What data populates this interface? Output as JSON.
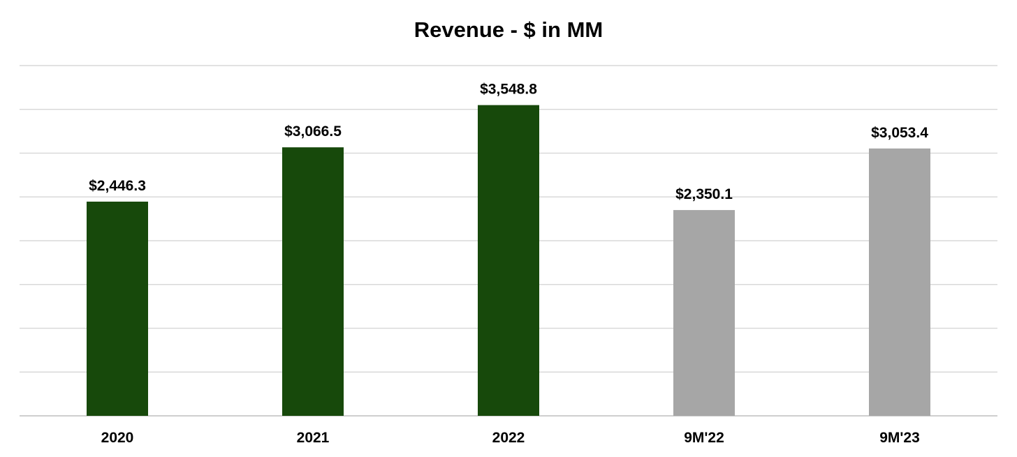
{
  "chart_data": {
    "type": "bar",
    "title": "Revenue - $ in MM",
    "categories": [
      "2020",
      "2021",
      "2022",
      "9M'22",
      "9M'23"
    ],
    "values": [
      2446.3,
      3066.5,
      3548.8,
      2350.1,
      3053.4
    ],
    "data_labels": [
      "$2,446.3",
      "$3,066.5",
      "$3,548.8",
      "$2,350.1",
      "$3,053.4"
    ],
    "bar_colors": [
      "#17490b",
      "#17490b",
      "#17490b",
      "#a6a6a6",
      "#a6a6a6"
    ],
    "ylim": [
      0,
      4000
    ],
    "y_gridline_step": 500,
    "y_tick_labels_shown": false,
    "grid": true,
    "legend": "none",
    "xlabel": "",
    "ylabel": ""
  }
}
